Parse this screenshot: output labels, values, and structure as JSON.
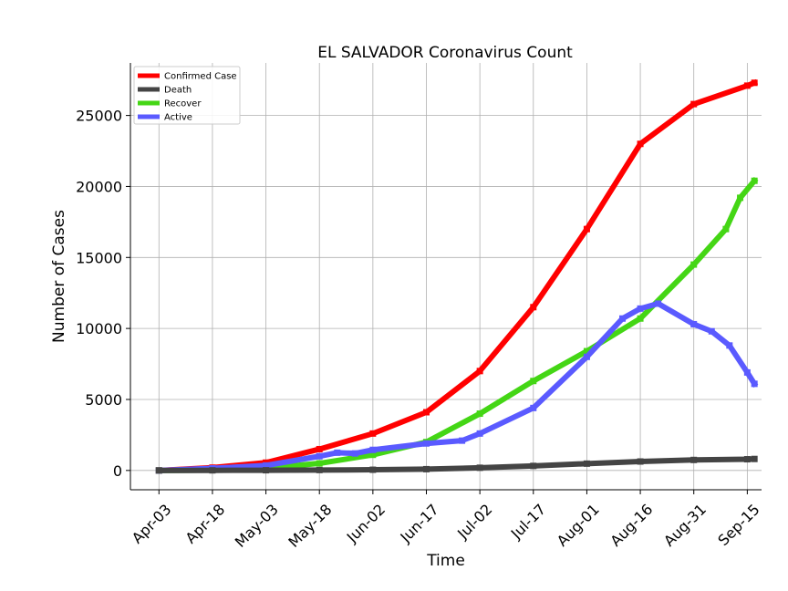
{
  "chart_data": {
    "type": "line",
    "title": "EL SALVADOR Coronavirus Count",
    "xlabel": "Time",
    "ylabel": "Number of Cases",
    "x_ticks": [
      "Apr-03",
      "Apr-18",
      "May-03",
      "May-18",
      "Jun-02",
      "Jun-17",
      "Jul-02",
      "Jul-17",
      "Aug-01",
      "Aug-16",
      "Aug-31",
      "Sep-15"
    ],
    "y_ticks": [
      0,
      5000,
      10000,
      15000,
      20000,
      25000
    ],
    "x_range": [
      "Mar-26",
      "Sep-19"
    ],
    "ylim": [
      -1360,
      28700
    ],
    "grid": true,
    "legend_position": "top-left",
    "series": [
      {
        "name": "Confirmed Case",
        "color": "#ff0000",
        "points": [
          [
            "Apr-03",
            0
          ],
          [
            "Apr-18",
            200
          ],
          [
            "May-03",
            550
          ],
          [
            "May-18",
            1500
          ],
          [
            "Jun-02",
            2600
          ],
          [
            "Jun-17",
            4100
          ],
          [
            "Jul-02",
            7000
          ],
          [
            "Jul-17",
            11500
          ],
          [
            "Aug-01",
            17000
          ],
          [
            "Aug-16",
            23000
          ],
          [
            "Aug-31",
            25800
          ],
          [
            "Sep-15",
            27100
          ],
          [
            "Sep-17",
            27300
          ]
        ]
      },
      {
        "name": "Death",
        "color": "#444444",
        "points": [
          [
            "Apr-03",
            0
          ],
          [
            "Apr-18",
            8
          ],
          [
            "May-03",
            15
          ],
          [
            "May-18",
            30
          ],
          [
            "Jun-02",
            50
          ],
          [
            "Jun-17",
            90
          ],
          [
            "Jul-02",
            190
          ],
          [
            "Jul-17",
            320
          ],
          [
            "Aug-01",
            480
          ],
          [
            "Aug-16",
            630
          ],
          [
            "Aug-31",
            740
          ],
          [
            "Sep-15",
            790
          ],
          [
            "Sep-17",
            810
          ]
        ]
      },
      {
        "name": "Recover",
        "color": "#44d615",
        "points": [
          [
            "Apr-03",
            0
          ],
          [
            "Apr-18",
            30
          ],
          [
            "May-03",
            150
          ],
          [
            "May-18",
            500
          ],
          [
            "Jun-02",
            1100
          ],
          [
            "Jun-17",
            2000
          ],
          [
            "Jul-02",
            4000
          ],
          [
            "Jul-17",
            6300
          ],
          [
            "Aug-01",
            8400
          ],
          [
            "Aug-16",
            10700
          ],
          [
            "Aug-31",
            14500
          ],
          [
            "Sep-09",
            17000
          ],
          [
            "Sep-13",
            19200
          ],
          [
            "Sep-17",
            20400
          ]
        ]
      },
      {
        "name": "Active",
        "color": "#5a5aff",
        "points": [
          [
            "Apr-03",
            0
          ],
          [
            "Apr-18",
            150
          ],
          [
            "May-03",
            350
          ],
          [
            "May-18",
            1000
          ],
          [
            "May-23",
            1250
          ],
          [
            "May-28",
            1200
          ],
          [
            "Jun-02",
            1450
          ],
          [
            "Jun-17",
            1900
          ],
          [
            "Jun-27",
            2100
          ],
          [
            "Jul-02",
            2600
          ],
          [
            "Jul-17",
            4400
          ],
          [
            "Aug-01",
            8000
          ],
          [
            "Aug-11",
            10700
          ],
          [
            "Aug-16",
            11400
          ],
          [
            "Aug-21",
            11750
          ],
          [
            "Aug-31",
            10300
          ],
          [
            "Sep-05",
            9800
          ],
          [
            "Sep-10",
            8800
          ],
          [
            "Sep-15",
            6900
          ],
          [
            "Sep-17",
            6100
          ]
        ]
      }
    ]
  }
}
